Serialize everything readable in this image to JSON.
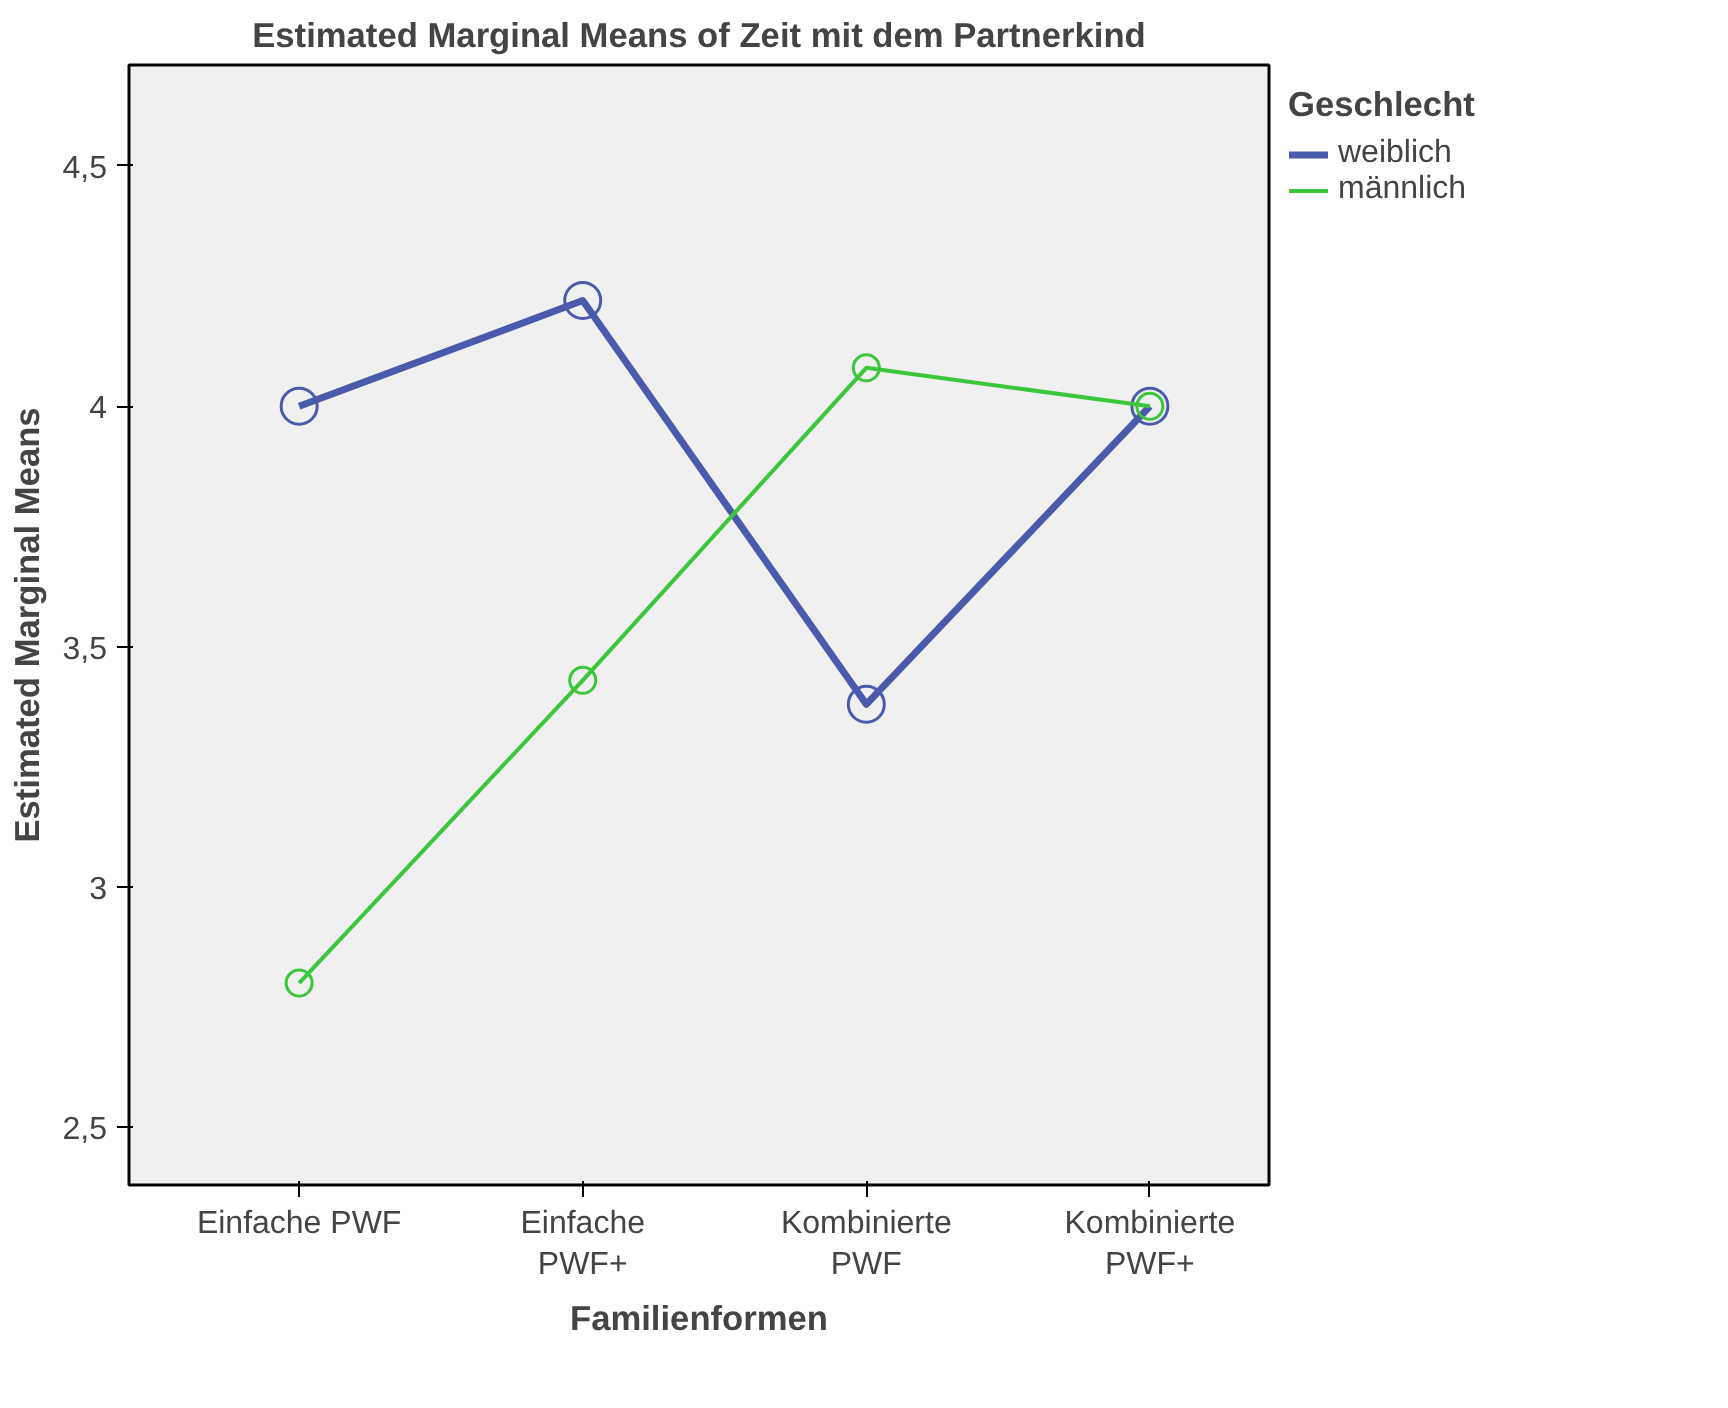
{
  "chart_data": {
    "type": "line",
    "title": "Estimated Marginal Means of Zeit mit dem Partnerkind",
    "xlabel": "Familienformen",
    "ylabel": "Estimated Marginal Means",
    "legend_title": "Geschlecht",
    "categories": [
      "Einfache PWF",
      "Einfache\nPWF+",
      "Kombinierte\nPWF",
      "Kombinierte\nPWF+"
    ],
    "series": [
      {
        "name": "weiblich",
        "color": "#4b5bab",
        "values": [
          4.0,
          4.22,
          3.38,
          4.0
        ]
      },
      {
        "name": "männlich",
        "color": "#3cc63c",
        "values": [
          2.8,
          3.43,
          4.08,
          4.0
        ]
      }
    ],
    "ylim": [
      2.38,
      4.71
    ],
    "yticks": [
      {
        "value": 2.5,
        "label": "2,5"
      },
      {
        "value": 3,
        "label": "3"
      },
      {
        "value": 3.5,
        "label": "3,5"
      },
      {
        "value": 4,
        "label": "4"
      },
      {
        "value": 4.5,
        "label": "4,5"
      }
    ],
    "grid": false,
    "legend": "top right",
    "marker": "circle",
    "line_style": "solid"
  }
}
